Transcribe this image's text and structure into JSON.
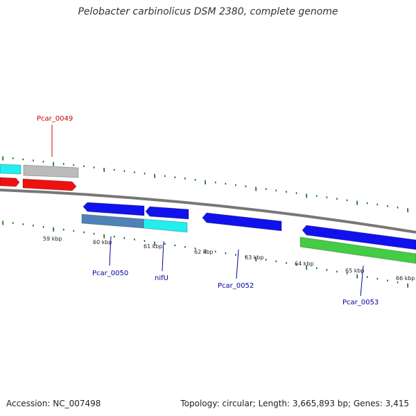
{
  "title": "Pelobacter carbinolicus DSM 2380, complete genome",
  "footer": {
    "accession": "Accession: NC_007498",
    "summary": "Topology: circular; Length: 3,665,893 bp; Genes: 3,415"
  },
  "colors": {
    "red": "#ee1111",
    "cyan": "#22eeee",
    "gray": "#bbbbbb",
    "blue": "#1111ee",
    "steel": "#4f82b8",
    "green": "#44cc44",
    "tick": "#116611",
    "backbone": "#777777",
    "label_red": "#cc0000",
    "label_blue": "#000099"
  },
  "scale": {
    "unit": "kbp",
    "labels": [
      "59 kbp",
      "60 kbp",
      "61 kbp",
      "62 kbp",
      "63 kbp",
      "64 kbp",
      "65 kbp",
      "66 kbp"
    ]
  },
  "genes": [
    {
      "label": "Pcar_0049",
      "color": "label_red"
    },
    {
      "label": "Pcar_0050",
      "color": "label_blue"
    },
    {
      "label": "nifU",
      "color": "label_blue"
    },
    {
      "label": "Pcar_0052",
      "color": "label_blue"
    },
    {
      "label": "Pcar_0053",
      "color": "label_blue"
    }
  ]
}
